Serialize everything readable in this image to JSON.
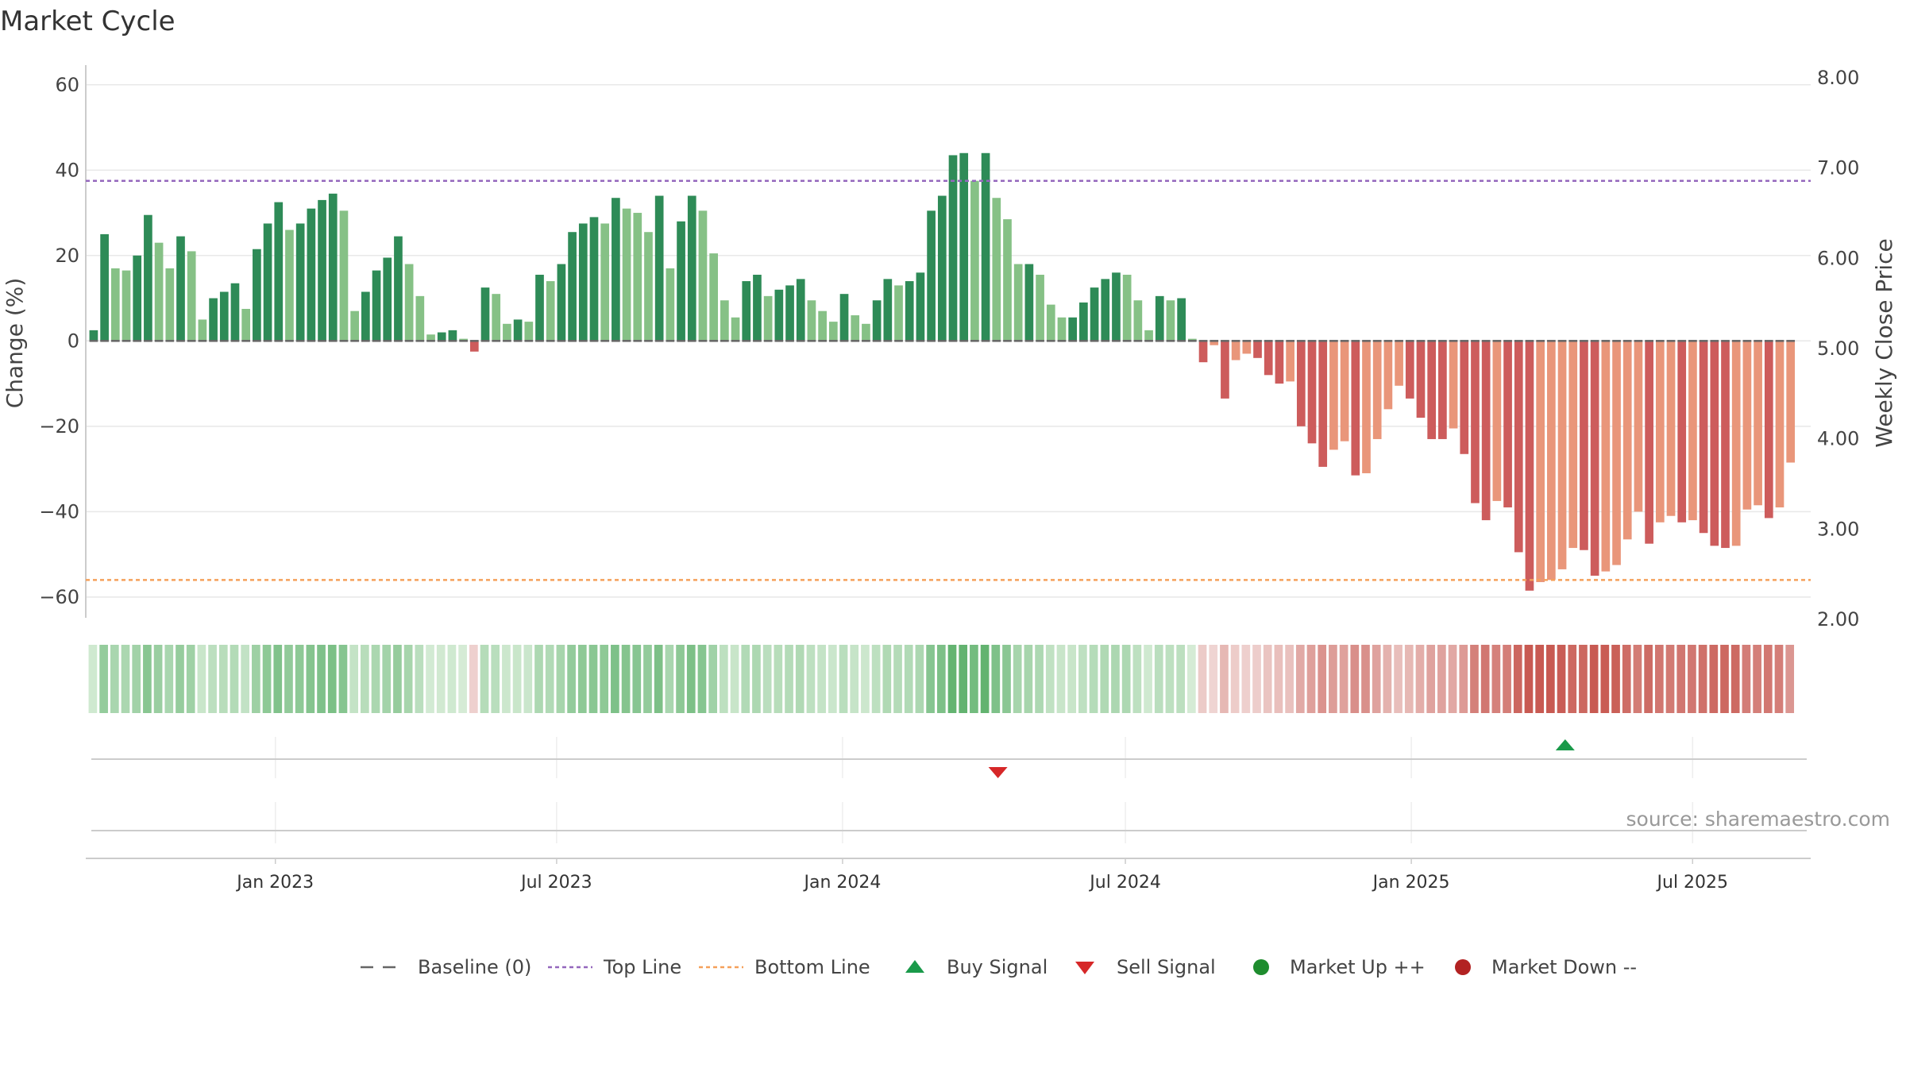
{
  "chart_data": {
    "type": "bar",
    "title": "Market Cycle",
    "ylabel": "Change (%)",
    "y2label": "Weekly Close Price",
    "ylim": [
      -63,
      62
    ],
    "y_ticks": [
      60,
      40,
      20,
      0,
      -20,
      -40,
      -60
    ],
    "y_tick_labels": [
      "60",
      "40",
      "20",
      "0",
      "−20",
      "−40",
      "−60"
    ],
    "y2lim": [
      2.0,
      8.0
    ],
    "y2_ticks": [
      "8.00",
      "7.00",
      "6.00",
      "5.00",
      "4.00",
      "3.00",
      "2.00"
    ],
    "top_line": 37.5,
    "bottom_line": -56,
    "x_start": "2022-09-01",
    "x_end": "2025-09-15",
    "x_ticks": [
      {
        "label": "Jan 2023",
        "date": "2023-01-01"
      },
      {
        "label": "Jul 2023",
        "date": "2023-07-01"
      },
      {
        "label": "Jan 2024",
        "date": "2024-01-01"
      },
      {
        "label": "Jul 2024",
        "date": "2024-07-01"
      },
      {
        "label": "Jan 2025",
        "date": "2025-01-01"
      },
      {
        "label": "Jul 2025",
        "date": "2025-07-01"
      }
    ],
    "first_week": "2022-09-03",
    "weekly_change": [
      2.5,
      25,
      17,
      16.5,
      20,
      29.5,
      23,
      17,
      24.5,
      21,
      5,
      10,
      11.5,
      13.5,
      7.5,
      21.5,
      27.5,
      32.5,
      26,
      27.5,
      31,
      33,
      34.5,
      30.5,
      7,
      11.5,
      16.5,
      19.5,
      24.5,
      18,
      10.5,
      1.5,
      2,
      2.5,
      0.5,
      -2.5,
      12.5,
      11,
      4,
      5,
      4.5,
      15.5,
      14,
      18,
      25.5,
      27.5,
      29,
      27.5,
      33.5,
      31,
      30,
      25.5,
      34,
      17,
      28,
      34,
      30.5,
      20.5,
      9.5,
      5.5,
      14,
      15.5,
      10.5,
      12,
      13,
      14.5,
      9.5,
      7,
      4.5,
      11,
      6,
      4,
      9.5,
      14.5,
      13,
      14,
      16,
      30.5,
      34,
      43.5,
      44,
      37.5,
      44,
      33.5,
      28.5,
      18,
      18,
      15.5,
      8.5,
      5.5,
      5.5,
      9,
      12.5,
      14.5,
      16,
      15.5,
      9.5,
      2.5,
      10.5,
      9.5,
      10,
      0.5,
      -5,
      -1,
      -13.5,
      -4.5,
      -3,
      -4,
      -8,
      -10,
      -9.5,
      -20,
      -24,
      -29.5,
      -25.5,
      -23.5,
      -31.5,
      -31,
      -23,
      -16,
      -10.5,
      -13.5,
      -18,
      -23,
      -23,
      -20.5,
      -26.5,
      -38,
      -42,
      -37.5,
      -39,
      -49.5,
      -58.5,
      -56.5,
      -56,
      -53.5,
      -48.5,
      -49,
      -55,
      -54,
      -52.5,
      -46.5,
      -40,
      -47.5,
      -42.5,
      -41,
      -42.5,
      -42,
      -45,
      -48,
      -48.5,
      -48,
      -39.5,
      -38.5,
      -41.5,
      -39,
      -28.5
    ],
    "signals": [
      {
        "type": "sell",
        "date": "2024-04-10"
      },
      {
        "type": "buy",
        "date": "2025-04-10"
      }
    ],
    "baseline": 0,
    "series": [
      {
        "name": "Baseline (0)",
        "style": "dashed",
        "color": "#666666"
      },
      {
        "name": "Top Line",
        "style": "dotted",
        "color": "#9467bd"
      },
      {
        "name": "Bottom Line",
        "style": "dotted",
        "color": "#f5a05a"
      },
      {
        "name": "Buy Signal",
        "style": "triangle-up",
        "color": "#1a9a4a"
      },
      {
        "name": "Sell Signal",
        "style": "triangle-down",
        "color": "#d62728"
      },
      {
        "name": "Market Up ++",
        "style": "circle",
        "color": "#1e8c2e"
      },
      {
        "name": "Market Down --",
        "style": "circle",
        "color": "#b22222"
      }
    ],
    "colors": {
      "up_strong": "#2e8b57",
      "up_weak": "#86c186",
      "down_strong": "#cd5c5c",
      "down_weak": "#e9967a",
      "top_line": "#9467bd",
      "bottom_line": "#f5a05a",
      "baseline": "#666666"
    },
    "source": "source: sharemaestro.com"
  }
}
